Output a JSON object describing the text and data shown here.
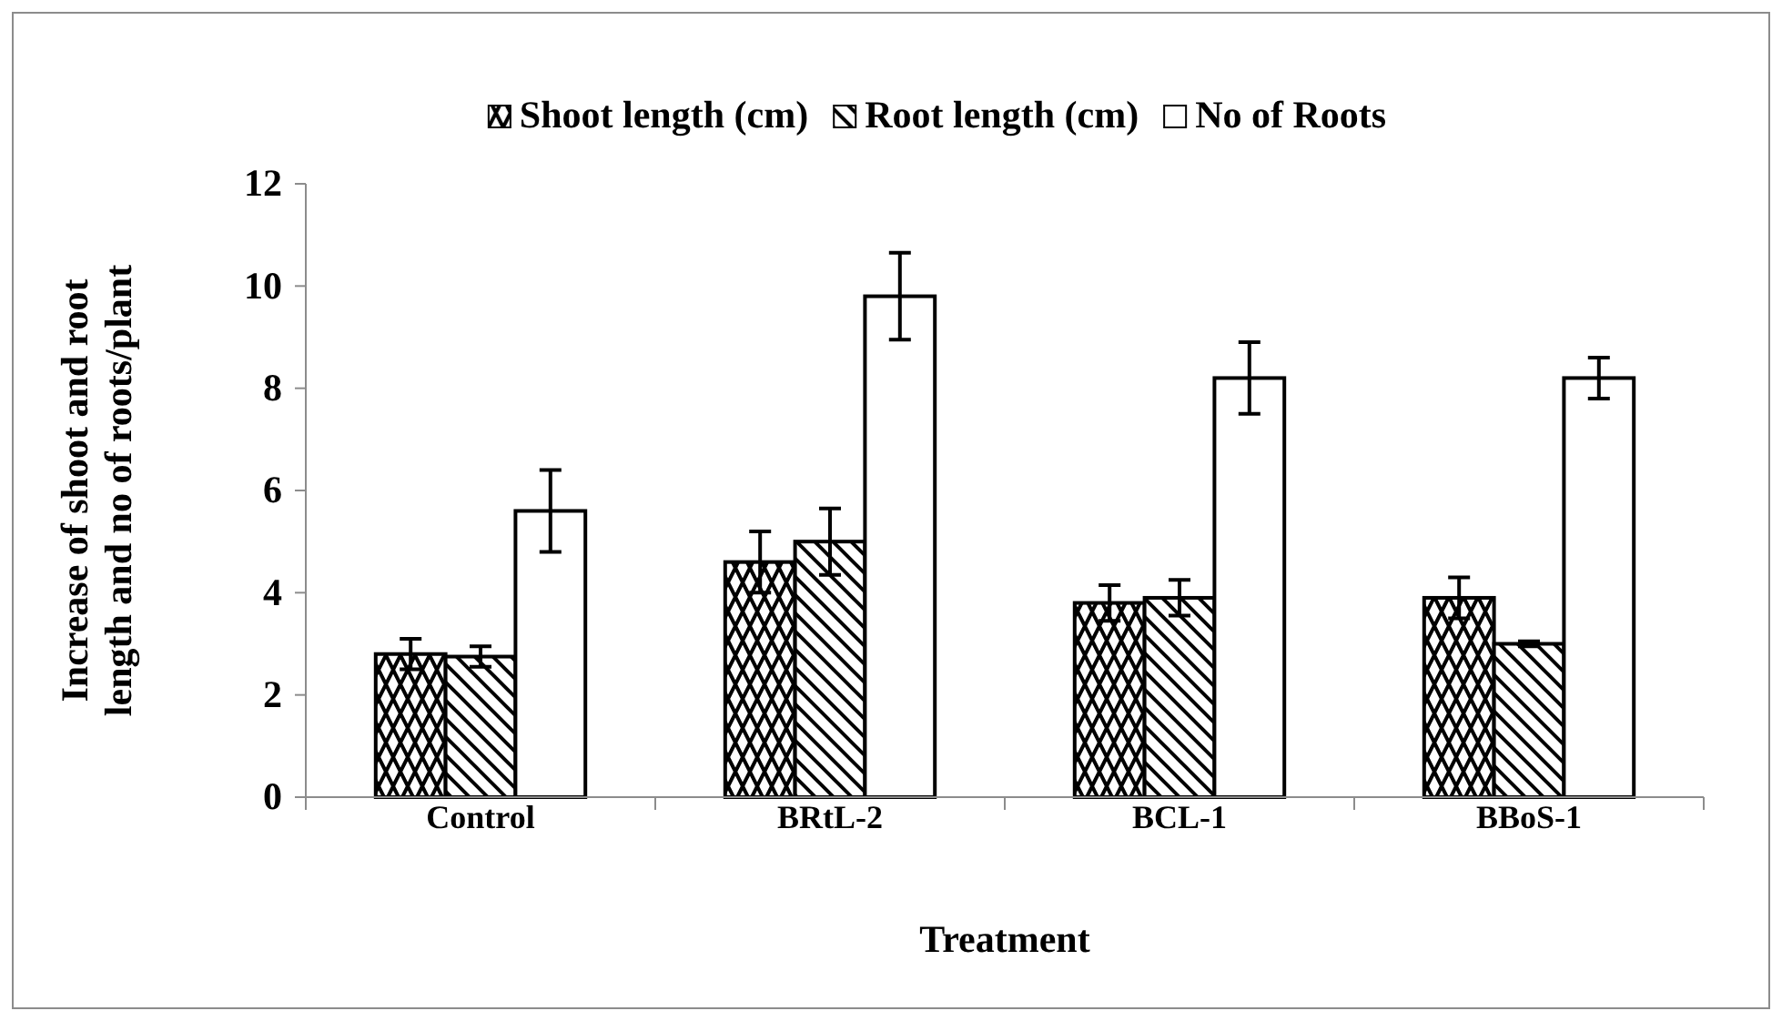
{
  "chart_data": {
    "type": "bar",
    "xlabel": "Treatment",
    "ylabel": "Increase of shoot and root length and no of roots/plant",
    "categories": [
      "Control",
      "BRtL-2",
      "BCL-1",
      "BBoS-1"
    ],
    "series": [
      {
        "name": "Shoot length (cm)",
        "color": "#000000",
        "values": [
          2.8,
          4.6,
          3.8,
          3.9
        ],
        "errors": [
          0.3,
          0.6,
          0.35,
          0.4
        ]
      },
      {
        "name": "Root length (cm)",
        "color": "#000000",
        "values": [
          2.75,
          5.0,
          3.9,
          3.0
        ],
        "errors": [
          0.2,
          0.65,
          0.35,
          0.05
        ]
      },
      {
        "name": "No of Roots",
        "color": "#000000",
        "values": [
          5.6,
          9.8,
          8.2,
          8.2
        ],
        "errors": [
          0.8,
          0.85,
          0.7,
          0.4
        ]
      }
    ],
    "ylim": [
      0,
      12
    ],
    "yticks": [
      0,
      2,
      4,
      6,
      8,
      10,
      12
    ],
    "grid": false,
    "legend": "top"
  }
}
